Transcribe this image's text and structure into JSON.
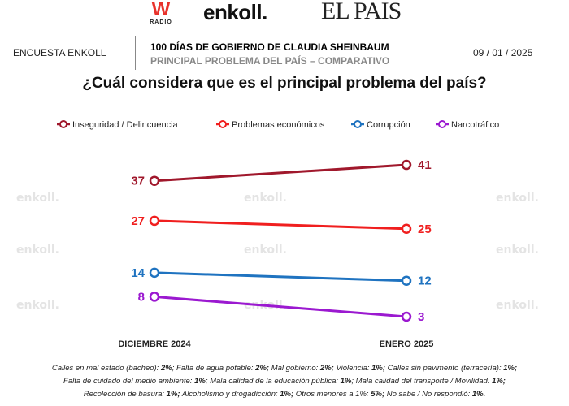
{
  "logos": {
    "w_radio": "W",
    "w_radio_sub": "RADIO",
    "enkoll": "enkoll.",
    "el_pais": "EL PAIS"
  },
  "header": {
    "left": "ENCUESTA ENKOLL",
    "title": "100 DÍAS DE GOBIERNO DE CLAUDIA SHEINBAUM",
    "subtitle": "PRINCIPAL PROBLEMA DEL PAÍS – COMPARATIVO",
    "date": "09 / 01 / 2025"
  },
  "watermark": "enkoll.",
  "chart_data": {
    "type": "line",
    "title": "¿Cuál considera que es el principal problema del país?",
    "categories": [
      "DICIEMBRE 2024",
      "ENERO 2025"
    ],
    "legend_position": "top",
    "grid": false,
    "series": [
      {
        "name": "Inseguridad / Delincuencia",
        "values": [
          37,
          41
        ],
        "color": "#a0182c"
      },
      {
        "name": "Problemas económicos",
        "values": [
          27,
          25
        ],
        "color": "#f01f1f"
      },
      {
        "name": "Corrupción",
        "values": [
          14,
          12
        ],
        "color": "#1f73c0"
      },
      {
        "name": "Narcotráfico",
        "values": [
          8,
          3
        ],
        "color": "#9b19d0"
      }
    ]
  },
  "notes": [
    [
      [
        "Calles en mal estado (bacheo): ",
        "2%"
      ],
      [
        "; Falta de agua potable: ",
        "2%;"
      ],
      [
        " Mal gobierno: ",
        "2%;"
      ],
      [
        " Violencia: ",
        "1%;"
      ],
      [
        " Calles sin pavimento (terracería): ",
        "1%;"
      ]
    ],
    [
      [
        "Falta de cuidado del medio ambiente: ",
        "1%"
      ],
      [
        "; Mala calidad de la educación pública: ",
        "1%"
      ],
      [
        "; Mala calidad del transporte / Movilidad: ",
        "1%;"
      ]
    ],
    [
      [
        "Recolección de basura: ",
        "1%;"
      ],
      [
        " Alcoholismo y drogadicción: ",
        "1%;"
      ],
      [
        " Otros menores a 1%: ",
        "5%;"
      ],
      [
        " No sabe / No respondió: ",
        "1%."
      ]
    ]
  ]
}
